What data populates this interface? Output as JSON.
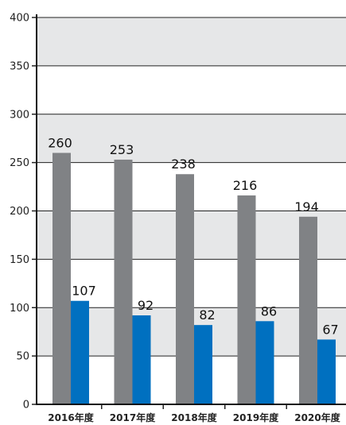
{
  "chart_data": {
    "type": "bar",
    "categories": [
      "2016年度",
      "2017年度",
      "2018年度",
      "2019年度",
      "2020年度"
    ],
    "series": [
      {
        "values": [
          260,
          253,
          238,
          216,
          194
        ],
        "color": "#808285"
      },
      {
        "values": [
          107,
          92,
          82,
          86,
          67
        ],
        "color": "#0070c0"
      }
    ],
    "data_labels": {
      "series_0": [
        "260",
        "253",
        "238",
        "216",
        "194"
      ],
      "series_1": [
        "107",
        "92",
        "82",
        "86",
        "67"
      ]
    },
    "ylim": [
      0,
      400
    ],
    "yticks": [
      0,
      50,
      100,
      150,
      200,
      250,
      300,
      350,
      400
    ],
    "ytick_labels": [
      "0",
      "50",
      "100",
      "150",
      "200",
      "250",
      "300",
      "350",
      "400"
    ],
    "grid": true,
    "band_color": "#e6e7e8",
    "title": "",
    "xlabel": "",
    "ylabel": ""
  }
}
